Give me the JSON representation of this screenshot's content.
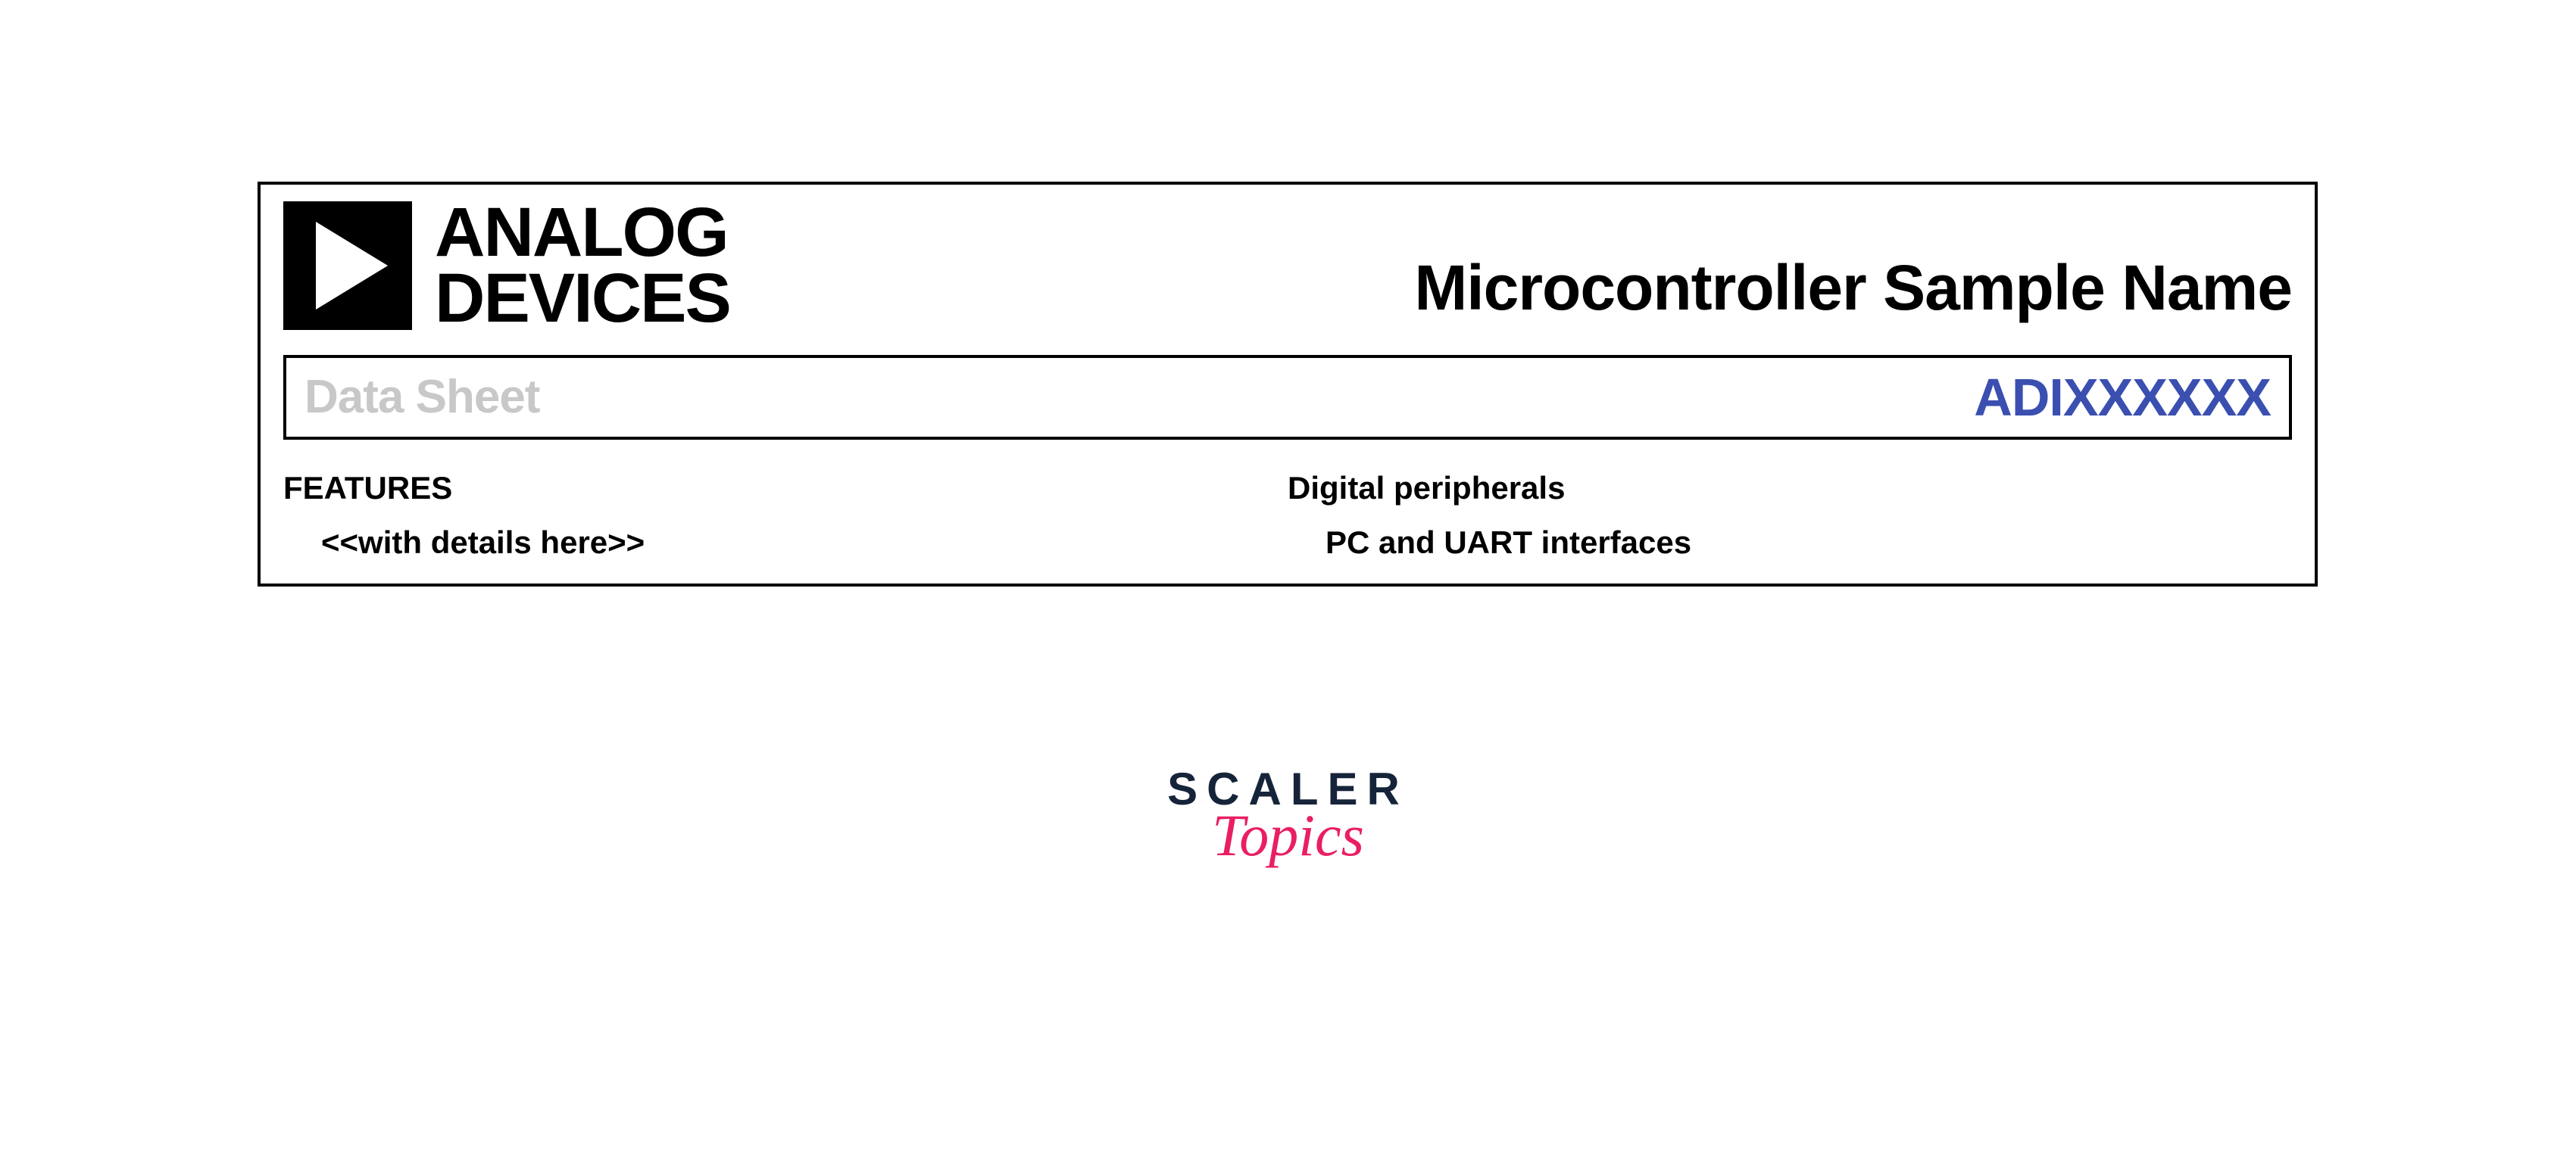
{
  "datasheet": {
    "brand_line1": "ANALOG",
    "brand_line2": "DEVICES",
    "product_title": "Microcontroller Sample Name",
    "subtitle_left": "Data Sheet",
    "subtitle_right": "ADIXXXXXX",
    "colors": {
      "border": "#000000",
      "background": "#ffffff",
      "subtitle_left": "#c8c8c8",
      "subtitle_right": "#3a4fb0",
      "text": "#000000"
    },
    "left_column": {
      "heading": "FEATURES",
      "item": "<<with details here>>"
    },
    "right_column": {
      "heading": "Digital peripherals",
      "item": "PC and UART interfaces"
    }
  },
  "watermark": {
    "line1": "SCALER",
    "line2": "Topics",
    "line1_color": "#16243a",
    "line2_color": "#e91e63"
  }
}
